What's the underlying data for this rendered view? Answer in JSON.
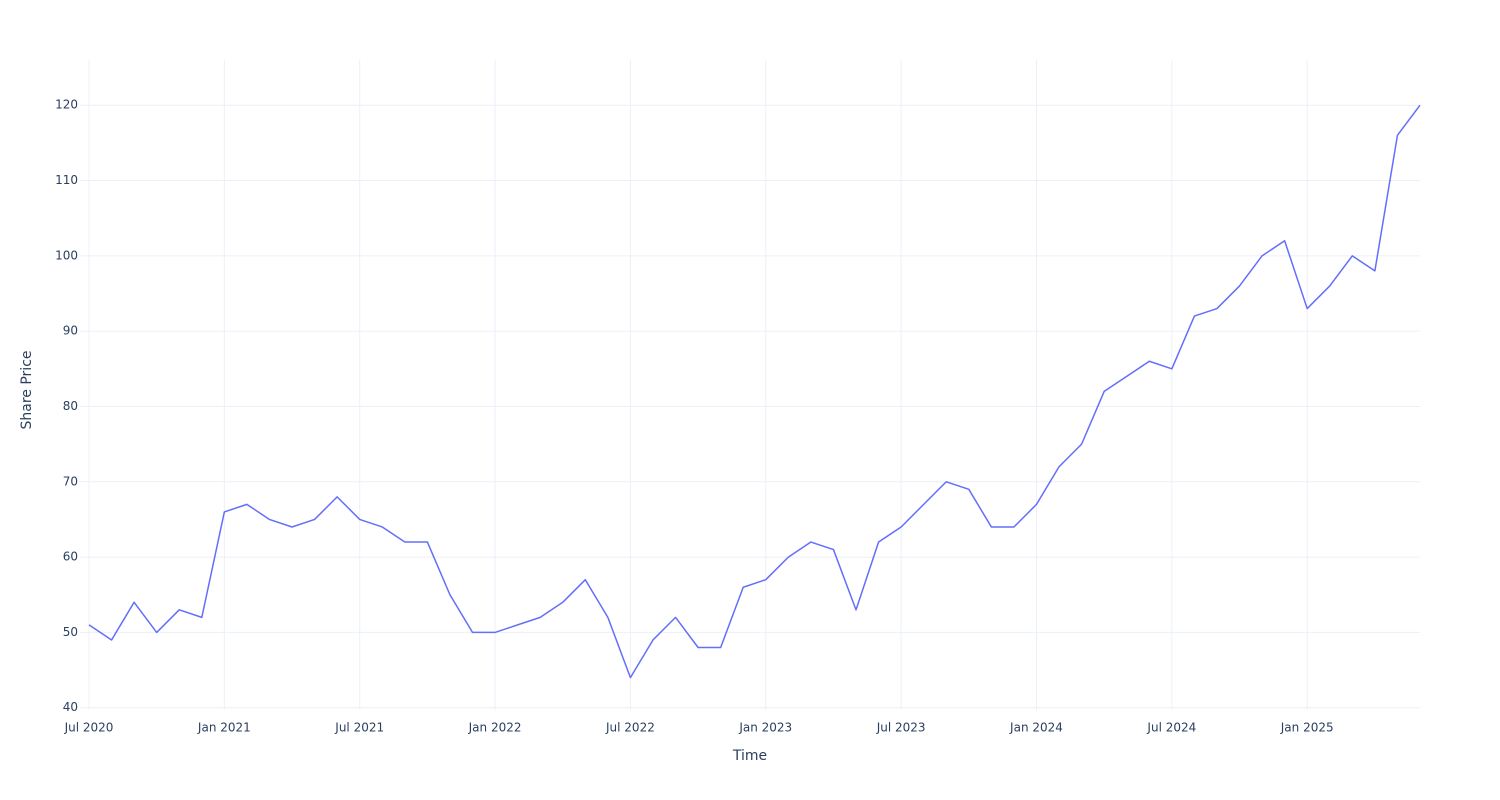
{
  "chart_data": {
    "type": "line",
    "x_label": "Time",
    "y_label": "Share Price",
    "x": [
      "2020-07",
      "2020-08",
      "2020-09",
      "2020-10",
      "2020-11",
      "2020-12",
      "2021-01",
      "2021-02",
      "2021-03",
      "2021-04",
      "2021-05",
      "2021-06",
      "2021-07",
      "2021-08",
      "2021-09",
      "2021-10",
      "2021-11",
      "2021-12",
      "2022-01",
      "2022-02",
      "2022-03",
      "2022-04",
      "2022-05",
      "2022-06",
      "2022-07",
      "2022-08",
      "2022-09",
      "2022-10",
      "2022-11",
      "2022-12",
      "2023-01",
      "2023-02",
      "2023-03",
      "2023-04",
      "2023-05",
      "2023-06",
      "2023-07",
      "2023-08",
      "2023-09",
      "2023-10",
      "2023-11",
      "2023-12",
      "2024-01",
      "2024-02",
      "2024-03",
      "2024-04",
      "2024-05",
      "2024-06",
      "2024-07",
      "2024-08",
      "2024-09",
      "2024-10",
      "2024-11",
      "2024-12",
      "2025-01",
      "2025-02",
      "2025-03",
      "2025-04",
      "2025-05",
      "2025-06"
    ],
    "series": [
      {
        "name": "Share Price",
        "color": "#636efa",
        "values": [
          51,
          49,
          54,
          50,
          53,
          52,
          66,
          67,
          65,
          64,
          65,
          68,
          65,
          64,
          62,
          62,
          55,
          50,
          50,
          51,
          52,
          54,
          57,
          52,
          44,
          49,
          52,
          48,
          48,
          56,
          57,
          60,
          62,
          61,
          53,
          62,
          64,
          67,
          70,
          69,
          64,
          64,
          67,
          72,
          75,
          82,
          84,
          86,
          85,
          92,
          93,
          96,
          100,
          102,
          93,
          96,
          100,
          98,
          116,
          120
        ]
      }
    ],
    "xlim": [
      "2020-07",
      "2025-06"
    ],
    "xticks": [
      {
        "value": "2020-07",
        "label": "Jul 2020"
      },
      {
        "value": "2021-01",
        "label": "Jan 2021"
      },
      {
        "value": "2021-07",
        "label": "Jul 2021"
      },
      {
        "value": "2022-01",
        "label": "Jan 2022"
      },
      {
        "value": "2022-07",
        "label": "Jul 2022"
      },
      {
        "value": "2023-01",
        "label": "Jan 2023"
      },
      {
        "value": "2023-07",
        "label": "Jul 2023"
      },
      {
        "value": "2024-01",
        "label": "Jan 2024"
      },
      {
        "value": "2024-07",
        "label": "Jul 2024"
      },
      {
        "value": "2025-01",
        "label": "Jan 2025"
      }
    ],
    "ylim": [
      39.7,
      126
    ],
    "yticks": [
      40,
      50,
      60,
      70,
      80,
      90,
      100,
      110,
      120
    ],
    "grid": true
  }
}
